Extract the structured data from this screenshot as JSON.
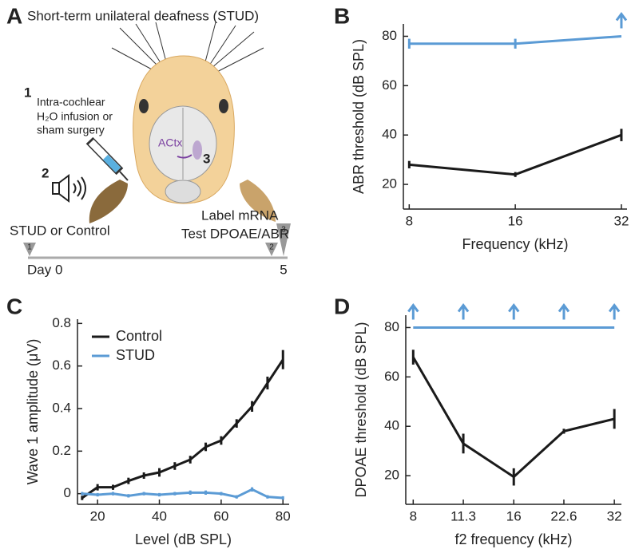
{
  "diagram": {
    "panel": "A",
    "title": "Short-term unilateral deafness (STUD)",
    "step1_number": "1",
    "step1_lines": [
      "Intra-cochlear",
      "H₂O infusion or",
      "sham surgery"
    ],
    "step2_number": "2",
    "region": "ACtx",
    "step3_number": "3",
    "timeline_left": "STUD or Control",
    "timeline_right": [
      "Label mRNA",
      "Test DPOAE/ABR"
    ],
    "day_start": "Day 0",
    "day_end": "5",
    "markers": [
      "1",
      "2",
      "3"
    ]
  },
  "chart_data": [
    {
      "type": "line",
      "panel": "B",
      "xlabel": "Frequency (kHz)",
      "ylabel": "ABR threshold (dB SPL)",
      "xscale": "log",
      "xlim": [
        7.7,
        33.2
      ],
      "xticks": [
        8,
        16,
        32
      ],
      "ylim": [
        10,
        85
      ],
      "yticks": [
        20,
        40,
        60,
        80
      ],
      "x": [
        8,
        16,
        32
      ],
      "series": [
        {
          "color": "#5b9bd5",
          "values": [
            77,
            77,
            80
          ],
          "errors": [
            2,
            2,
            null
          ],
          "above_limit": [
            false,
            false,
            true
          ]
        },
        {
          "color": "#1a1a1a",
          "values": [
            28,
            24,
            40
          ],
          "errors": [
            1.5,
            1,
            2.5
          ],
          "above_limit": [
            false,
            false,
            false
          ]
        }
      ]
    },
    {
      "type": "line",
      "panel": "C",
      "xlabel": "Level (dB SPL)",
      "ylabel": "Wave 1 amplitude (μV)",
      "xscale": "linear",
      "xlim": [
        13.5,
        82
      ],
      "xticks": [
        20,
        40,
        60,
        80
      ],
      "ylim": [
        -0.05,
        0.82
      ],
      "yticks": [
        0,
        0.2,
        0.4,
        0.6,
        0.8
      ],
      "legend": "upper left",
      "x": [
        15,
        20,
        25,
        30,
        35,
        40,
        45,
        50,
        55,
        60,
        65,
        70,
        75,
        80
      ],
      "series": [
        {
          "name": "Control",
          "color": "#1a1a1a",
          "values": [
            -0.02,
            0.03,
            0.03,
            0.06,
            0.085,
            0.1,
            0.13,
            0.16,
            0.22,
            0.25,
            0.33,
            0.41,
            0.52,
            0.63
          ],
          "errors": [
            0.01,
            0.015,
            0.012,
            0.015,
            0.015,
            0.02,
            0.018,
            0.018,
            0.02,
            0.02,
            0.02,
            0.025,
            0.03,
            0.045
          ]
        },
        {
          "name": "STUD",
          "color": "#5b9bd5",
          "values": [
            0.0,
            -0.005,
            0.0,
            -0.01,
            0.0,
            -0.005,
            0.0,
            0.005,
            0.005,
            0.0,
            -0.015,
            0.02,
            -0.015,
            -0.02
          ],
          "errors": [
            0.008,
            0.008,
            0.008,
            0.008,
            0.008,
            0.008,
            0.008,
            0.01,
            0.01,
            0.008,
            0.008,
            0.01,
            0.008,
            0.008
          ]
        }
      ]
    },
    {
      "type": "line",
      "panel": "D",
      "xlabel": "f2 frequency (kHz)",
      "ylabel": "DPOAE threshold (dB SPL)",
      "xscale": "log",
      "xlim": [
        7.6,
        33.6
      ],
      "xticks": [
        8,
        11.3,
        16,
        22.6,
        32
      ],
      "ylim": [
        8.4,
        85
      ],
      "yticks": [
        20,
        40,
        60,
        80
      ],
      "x": [
        8,
        11.3,
        16,
        22.6,
        32
      ],
      "series": [
        {
          "color": "#5b9bd5",
          "values": [
            80,
            80,
            80,
            80,
            80
          ],
          "errors": [
            null,
            null,
            null,
            null,
            null
          ],
          "above_limit": [
            true,
            true,
            true,
            true,
            true
          ]
        },
        {
          "color": "#1a1a1a",
          "values": [
            68,
            33,
            19.5,
            38,
            43
          ],
          "errors": [
            3,
            4,
            3.5,
            1,
            4
          ],
          "above_limit": [
            false,
            false,
            false,
            false,
            false
          ]
        }
      ]
    }
  ]
}
